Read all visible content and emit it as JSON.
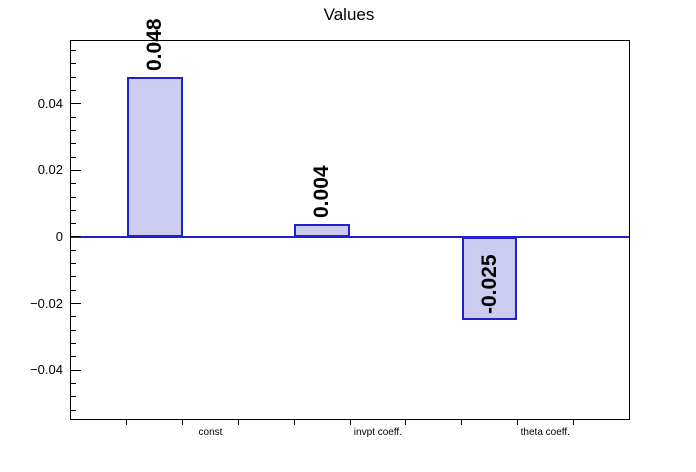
{
  "chart_data": {
    "type": "bar",
    "title": "Values",
    "categories": [
      "const",
      "invpt coeff.",
      "theta coeff."
    ],
    "values": [
      0.048,
      0.004,
      -0.025
    ],
    "value_labels": [
      "0.048",
      "0.004",
      "-0.025"
    ],
    "ylim": [
      -0.0547,
      0.0589
    ],
    "y_major_ticks": [
      -0.04,
      -0.02,
      0,
      0.02,
      0.04
    ],
    "y_tick_labels": [
      "−0.04",
      "−0.02",
      "0",
      "0.02",
      "0.04"
    ],
    "y_minor_step": 0.004,
    "n_bins": 10,
    "bar_bins": [
      1,
      4,
      7
    ],
    "label_bins": [
      2,
      5,
      8
    ],
    "grid": false,
    "legend": "none",
    "colors": {
      "bar_fill": "#ccccf0",
      "bar_border": "#2121cc",
      "baseline": "#2121cc",
      "frame": "#000000",
      "text": "#000000",
      "background": "#ffffff"
    }
  }
}
